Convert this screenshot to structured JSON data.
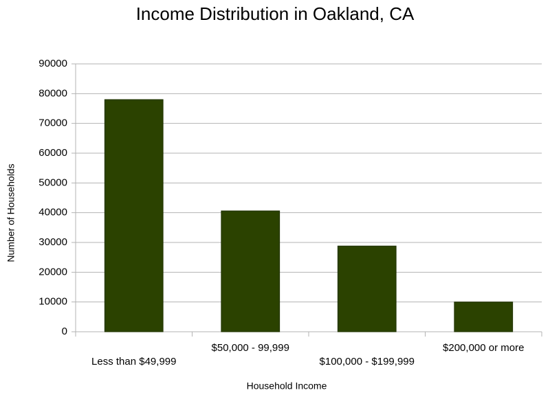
{
  "chart_data": {
    "type": "bar",
    "title": "Income Distribution in Oakland, CA",
    "x_label": "Household Income",
    "y_label": "Number of Households",
    "categories": [
      "Less than $49,999",
      "$50,000 - 99,999",
      "$100,000 - $199,999",
      "$200,000 or more"
    ],
    "values": [
      78000,
      40600,
      28800,
      10000
    ],
    "color": "#2b4200",
    "ylim": [
      0,
      90000
    ],
    "yticks": [
      0,
      10000,
      20000,
      30000,
      40000,
      50000,
      60000,
      70000,
      80000,
      90000
    ],
    "grid": true
  }
}
